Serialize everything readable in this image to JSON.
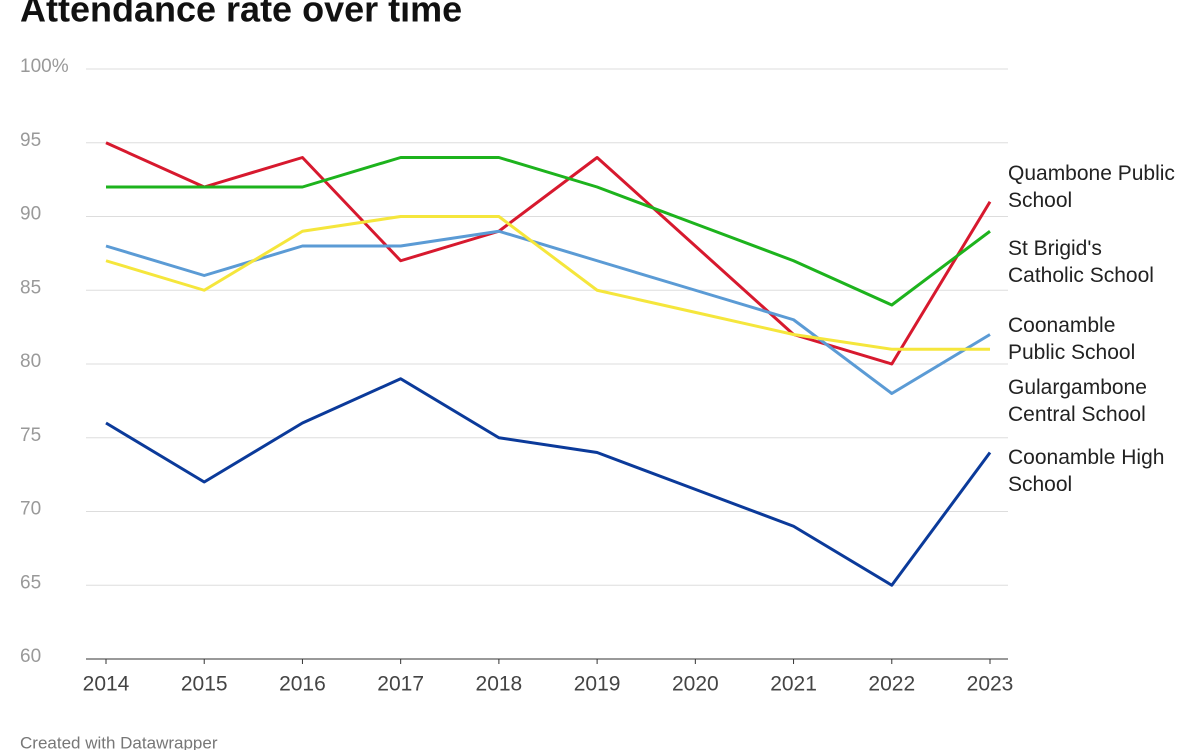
{
  "chart_data": {
    "type": "line",
    "title": "Attendance rate over time",
    "footer": "Created with Datawrapper",
    "x": [
      2014,
      2015,
      2016,
      2017,
      2018,
      2019,
      2020,
      2021,
      2022,
      2023
    ],
    "xlim": [
      2014,
      2023
    ],
    "xticks": [
      2014,
      2015,
      2016,
      2017,
      2018,
      2019,
      2020,
      2021,
      2022,
      2023
    ],
    "ylim": [
      60,
      100
    ],
    "yticks": [
      60,
      65,
      70,
      75,
      80,
      85,
      90,
      95,
      {
        "value": 100,
        "label": "100%"
      }
    ],
    "grid": true,
    "series": [
      {
        "name": "Quambone Public School",
        "color": "#d7192e",
        "values": [
          95,
          92,
          94,
          87,
          89,
          94,
          88,
          82,
          80,
          91
        ]
      },
      {
        "name": "St Brigid's Catholic School",
        "color": "#1db31d",
        "values": [
          92,
          92,
          92,
          94,
          94,
          92,
          89.5,
          87,
          84,
          89
        ]
      },
      {
        "name": "Coonamble Public School",
        "color": "#5b9bd5",
        "values": [
          88,
          86,
          88,
          88,
          89,
          87,
          85,
          83,
          78,
          82
        ]
      },
      {
        "name": "Gulargambone Central School",
        "color": "#f5e63c",
        "values": [
          87,
          85,
          89,
          90,
          90,
          85,
          83.5,
          82,
          81,
          81
        ]
      },
      {
        "name": "Coonamble High School",
        "color": "#0b3a9a",
        "values": [
          76,
          72,
          76,
          79,
          75,
          74,
          71.5,
          69,
          65,
          74
        ]
      }
    ]
  }
}
